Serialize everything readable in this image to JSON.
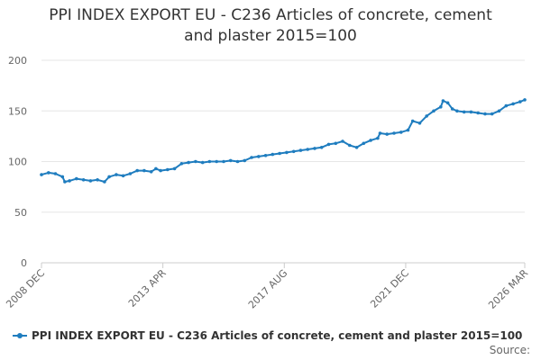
{
  "chart_data": {
    "type": "line",
    "title": "PPI INDEX EXPORT EU - C236 Articles of concrete, cement and plaster 2015=100",
    "title_lines": [
      "PPI INDEX EXPORT EU - C236 Articles of concrete, cement",
      "and plaster 2015=100"
    ],
    "y_ticks": [
      "0",
      "50",
      "100",
      "150",
      "200"
    ],
    "ylim": [
      0,
      200
    ],
    "x_ticks": [
      "2008 DEC",
      "2013 APR",
      "2017 AUG",
      "2021 DEC",
      "2026 MAR"
    ],
    "grid": true,
    "legend_position": "bottom",
    "series": [
      {
        "name": "PPI INDEX EXPORT EU - C236 Articles of concrete, cement and plaster 2015=100",
        "color": "#1f7dbf",
        "points": [
          [
            "2008-12",
            87
          ],
          [
            "2009-03",
            89
          ],
          [
            "2009-06",
            88
          ],
          [
            "2009-09",
            85
          ],
          [
            "2009-10",
            80
          ],
          [
            "2009-12",
            81
          ],
          [
            "2010-03",
            83
          ],
          [
            "2010-06",
            82
          ],
          [
            "2010-09",
            81
          ],
          [
            "2010-12",
            82
          ],
          [
            "2011-03",
            80
          ],
          [
            "2011-05",
            85
          ],
          [
            "2011-08",
            87
          ],
          [
            "2011-11",
            86
          ],
          [
            "2012-02",
            88
          ],
          [
            "2012-05",
            91
          ],
          [
            "2012-08",
            91
          ],
          [
            "2012-11",
            90
          ],
          [
            "2013-01",
            93
          ],
          [
            "2013-03",
            91
          ],
          [
            "2013-06",
            92
          ],
          [
            "2013-09",
            93
          ],
          [
            "2013-12",
            98
          ],
          [
            "2014-03",
            99
          ],
          [
            "2014-06",
            100
          ],
          [
            "2014-09",
            99
          ],
          [
            "2014-12",
            100
          ],
          [
            "2015-03",
            100
          ],
          [
            "2015-06",
            100
          ],
          [
            "2015-09",
            101
          ],
          [
            "2015-12",
            100
          ],
          [
            "2016-03",
            101
          ],
          [
            "2016-06",
            104
          ],
          [
            "2016-09",
            105
          ],
          [
            "2016-12",
            106
          ],
          [
            "2017-03",
            107
          ],
          [
            "2017-06",
            108
          ],
          [
            "2017-09",
            109
          ],
          [
            "2017-12",
            110
          ],
          [
            "2018-03",
            111
          ],
          [
            "2018-06",
            112
          ],
          [
            "2018-09",
            113
          ],
          [
            "2018-12",
            114
          ],
          [
            "2019-03",
            117
          ],
          [
            "2019-06",
            118
          ],
          [
            "2019-09",
            120
          ],
          [
            "2019-12",
            116
          ],
          [
            "2020-03",
            114
          ],
          [
            "2020-06",
            118
          ],
          [
            "2020-09",
            121
          ],
          [
            "2020-12",
            123
          ],
          [
            "2021-01",
            128
          ],
          [
            "2021-04",
            127
          ],
          [
            "2021-07",
            128
          ],
          [
            "2021-10",
            129
          ],
          [
            "2022-01",
            131
          ],
          [
            "2022-03",
            140
          ],
          [
            "2022-06",
            138
          ],
          [
            "2022-09",
            145
          ],
          [
            "2022-12",
            150
          ],
          [
            "2023-03",
            154
          ],
          [
            "2023-04",
            160
          ],
          [
            "2023-06",
            158
          ],
          [
            "2023-08",
            152
          ],
          [
            "2023-10",
            150
          ],
          [
            "2024-01",
            149
          ],
          [
            "2024-04",
            149
          ],
          [
            "2024-07",
            148
          ],
          [
            "2024-10",
            147
          ],
          [
            "2025-01",
            147
          ],
          [
            "2025-04",
            150
          ],
          [
            "2025-07",
            155
          ],
          [
            "2025-10",
            157
          ],
          [
            "2026-01",
            159
          ],
          [
            "2026-03",
            161
          ]
        ]
      }
    ],
    "source_label": "Source:"
  },
  "colors": {
    "series": "#1f7dbf",
    "grid": "#e6e6e6",
    "axis": "#cccccc"
  }
}
